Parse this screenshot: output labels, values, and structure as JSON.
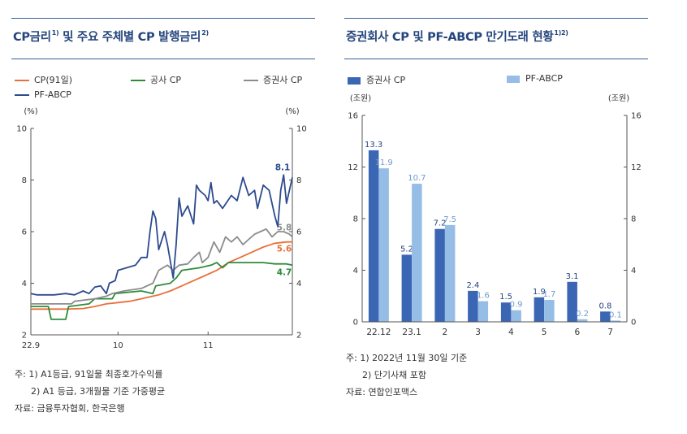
{
  "left": {
    "title": "CP금리",
    "title_sup1": "1)",
    "title_mid": " 및 주요 주체별 CP 발행금리",
    "title_sup2": "2)",
    "notes": [
      "주: 1) A1등급, 91일물 최종호가수익률",
      "2) A1 등급, 3개월물 기준 가중평균",
      "자료: 금융투자협회, 한국은행"
    ]
  },
  "right": {
    "title": "증권회사 CP 및 PF-ABCP 만기도래 현황",
    "title_sup": "1)2)",
    "notes": [
      "주: 1) 2022년 11월 30일 기준",
      "2) 단기사채 포함",
      "자료: 연합인포맥스"
    ]
  },
  "chart_data": [
    {
      "type": "line",
      "unit_left": "(%)",
      "unit_right": "(%)",
      "ylim": [
        2,
        10
      ],
      "yticks": [
        2,
        4,
        6,
        8,
        10
      ],
      "xlim": [
        0,
        90
      ],
      "xticks": [
        {
          "x": 0,
          "label": "22.9"
        },
        {
          "x": 30,
          "label": "10"
        },
        {
          "x": 61,
          "label": "11"
        }
      ],
      "series": [
        {
          "name": "CP(91일)",
          "color": "#e8703a",
          "end_label": "5.6",
          "values": [
            [
              0,
              3.0
            ],
            [
              6,
              3.0
            ],
            [
              12,
              3.0
            ],
            [
              18,
              3.02
            ],
            [
              22,
              3.1
            ],
            [
              26,
              3.2
            ],
            [
              30,
              3.25
            ],
            [
              34,
              3.3
            ],
            [
              38,
              3.4
            ],
            [
              42,
              3.5
            ],
            [
              44,
              3.55
            ],
            [
              48,
              3.7
            ],
            [
              52,
              3.9
            ],
            [
              56,
              4.1
            ],
            [
              60,
              4.3
            ],
            [
              64,
              4.5
            ],
            [
              68,
              4.8
            ],
            [
              72,
              5.0
            ],
            [
              76,
              5.2
            ],
            [
              80,
              5.4
            ],
            [
              84,
              5.55
            ],
            [
              88,
              5.6
            ],
            [
              90,
              5.6
            ]
          ]
        },
        {
          "name": "공사 CP",
          "color": "#2e8b3a",
          "end_label": "4.7",
          "values": [
            [
              0,
              3.1
            ],
            [
              6,
              3.1
            ],
            [
              7,
              2.6
            ],
            [
              12,
              2.6
            ],
            [
              13,
              3.1
            ],
            [
              20,
              3.2
            ],
            [
              22,
              3.4
            ],
            [
              28,
              3.4
            ],
            [
              29,
              3.6
            ],
            [
              38,
              3.7
            ],
            [
              42,
              3.6
            ],
            [
              43,
              3.9
            ],
            [
              48,
              4.0
            ],
            [
              50,
              4.2
            ],
            [
              52,
              4.5
            ],
            [
              58,
              4.6
            ],
            [
              62,
              4.7
            ],
            [
              64,
              4.8
            ],
            [
              66,
              4.6
            ],
            [
              68,
              4.8
            ],
            [
              75,
              4.8
            ],
            [
              80,
              4.8
            ],
            [
              84,
              4.75
            ],
            [
              88,
              4.75
            ],
            [
              90,
              4.7
            ]
          ]
        },
        {
          "name": "증권사 CP",
          "color": "#8c8c8c",
          "end_label": "5.8",
          "values": [
            [
              0,
              3.2
            ],
            [
              6,
              3.2
            ],
            [
              14,
              3.2
            ],
            [
              15,
              3.3
            ],
            [
              22,
              3.4
            ],
            [
              26,
              3.5
            ],
            [
              28,
              3.6
            ],
            [
              32,
              3.7
            ],
            [
              38,
              3.8
            ],
            [
              42,
              4.0
            ],
            [
              44,
              4.5
            ],
            [
              47,
              4.7
            ],
            [
              49,
              4.5
            ],
            [
              51,
              4.7
            ],
            [
              54,
              4.75
            ],
            [
              56,
              5.0
            ],
            [
              58,
              5.2
            ],
            [
              59,
              4.8
            ],
            [
              61,
              5.0
            ],
            [
              63,
              5.6
            ],
            [
              65,
              5.2
            ],
            [
              67,
              5.8
            ],
            [
              69,
              5.6
            ],
            [
              71,
              5.8
            ],
            [
              73,
              5.5
            ],
            [
              75,
              5.7
            ],
            [
              77,
              5.9
            ],
            [
              79,
              6.0
            ],
            [
              81,
              6.1
            ],
            [
              83,
              5.8
            ],
            [
              85,
              6.0
            ],
            [
              87,
              6.0
            ],
            [
              89,
              5.9
            ],
            [
              90,
              5.8
            ]
          ]
        },
        {
          "name": "PF-ABCP",
          "color": "#2d4b8e",
          "end_label": "8.1",
          "values": [
            [
              0,
              3.6
            ],
            [
              2,
              3.55
            ],
            [
              8,
              3.55
            ],
            [
              12,
              3.6
            ],
            [
              15,
              3.55
            ],
            [
              18,
              3.7
            ],
            [
              20,
              3.6
            ],
            [
              22,
              3.85
            ],
            [
              24,
              3.9
            ],
            [
              26,
              3.6
            ],
            [
              27,
              4.0
            ],
            [
              29,
              4.1
            ],
            [
              30,
              4.5
            ],
            [
              36,
              4.7
            ],
            [
              38,
              5.0
            ],
            [
              40,
              5.0
            ],
            [
              41,
              6.0
            ],
            [
              42,
              6.8
            ],
            [
              43,
              6.5
            ],
            [
              44,
              5.3
            ],
            [
              46,
              6.0
            ],
            [
              47,
              5.5
            ],
            [
              49,
              4.2
            ],
            [
              50,
              5.5
            ],
            [
              51,
              7.3
            ],
            [
              52,
              6.6
            ],
            [
              54,
              7.0
            ],
            [
              56,
              6.3
            ],
            [
              57,
              7.8
            ],
            [
              58,
              7.6
            ],
            [
              60,
              7.4
            ],
            [
              61,
              7.2
            ],
            [
              62,
              7.9
            ],
            [
              63,
              7.1
            ],
            [
              64,
              7.2
            ],
            [
              66,
              6.9
            ],
            [
              69,
              7.4
            ],
            [
              71,
              7.2
            ],
            [
              73,
              8.1
            ],
            [
              75,
              7.4
            ],
            [
              77,
              7.6
            ],
            [
              78,
              6.9
            ],
            [
              80,
              7.8
            ],
            [
              82,
              7.6
            ],
            [
              84,
              6.6
            ],
            [
              85,
              6.2
            ],
            [
              86,
              7.6
            ],
            [
              87,
              8.2
            ],
            [
              88,
              7.1
            ],
            [
              89,
              7.6
            ],
            [
              90,
              8.1
            ]
          ]
        }
      ]
    },
    {
      "type": "bar",
      "unit_left": "(조원)",
      "unit_right": "(조원)",
      "ylim": [
        0,
        16
      ],
      "yticks": [
        0,
        4,
        8,
        12,
        16
      ],
      "categories": [
        "22.12",
        "23.1",
        "2",
        "3",
        "4",
        "5",
        "6",
        "7"
      ],
      "series": [
        {
          "name": "증권사 CP",
          "color": "#3a66b4",
          "label_color": "#24457c",
          "values": [
            13.3,
            5.2,
            7.2,
            2.4,
            1.5,
            1.9,
            3.1,
            0.8
          ]
        },
        {
          "name": "PF-ABCP",
          "color": "#96bde6",
          "label_color": "#6f9bd0",
          "values": [
            11.9,
            10.7,
            7.5,
            1.6,
            0.9,
            1.7,
            0.2,
            0.1
          ]
        }
      ]
    }
  ]
}
